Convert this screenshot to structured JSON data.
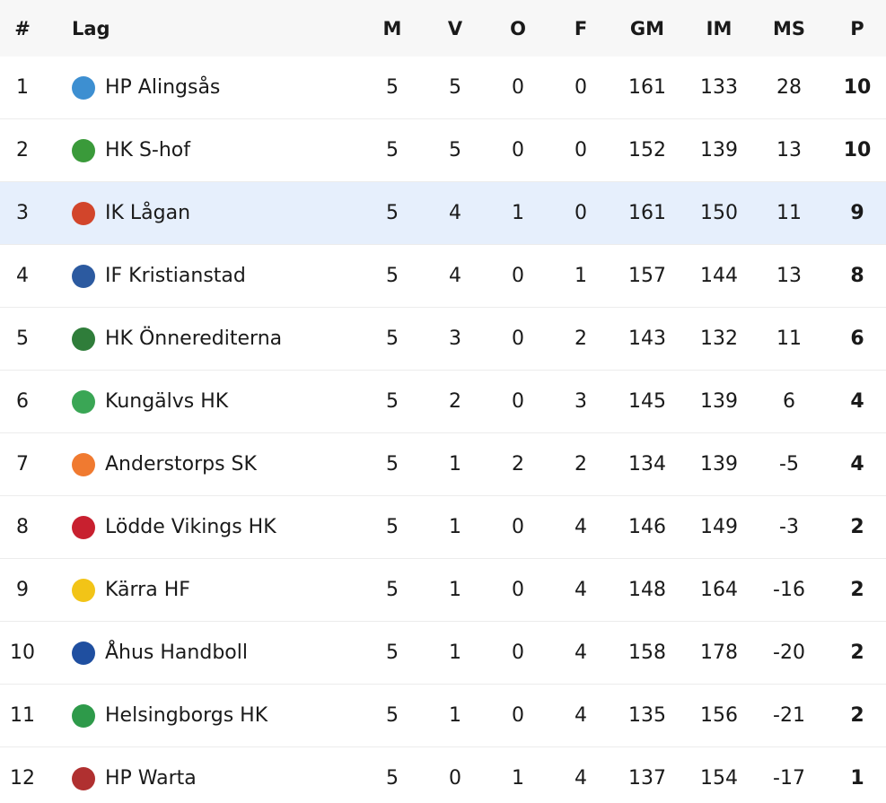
{
  "columns": {
    "rank": "#",
    "team": "Lag",
    "m": "M",
    "v": "V",
    "o": "O",
    "f": "F",
    "gm": "GM",
    "im": "IM",
    "ms": "MS",
    "p": "P"
  },
  "highlight_color": "#e6effc",
  "rows": [
    {
      "rank": "1",
      "team": "HP Alingsås",
      "logo": "hp-alingsas-logo",
      "color": "#3d8fd1",
      "m": "5",
      "v": "5",
      "o": "0",
      "f": "0",
      "gm": "161",
      "im": "133",
      "ms": "28",
      "p": "10"
    },
    {
      "rank": "2",
      "team": "HK S-hof",
      "logo": "hk-s-hof-logo",
      "color": "#3a9a3a",
      "m": "5",
      "v": "5",
      "o": "0",
      "f": "0",
      "gm": "152",
      "im": "139",
      "ms": "13",
      "p": "10"
    },
    {
      "rank": "3",
      "team": "IK Lågan",
      "logo": "ik-lagan-logo",
      "color": "#d2452b",
      "m": "5",
      "v": "4",
      "o": "1",
      "f": "0",
      "gm": "161",
      "im": "150",
      "ms": "11",
      "p": "9",
      "highlighted": true
    },
    {
      "rank": "4",
      "team": "IF Kristianstad",
      "logo": "if-kristianstad-logo",
      "color": "#2c5aa0",
      "m": "5",
      "v": "4",
      "o": "0",
      "f": "1",
      "gm": "157",
      "im": "144",
      "ms": "13",
      "p": "8"
    },
    {
      "rank": "5",
      "team": "HK Önnerediterna",
      "logo": "hk-onnerediterna-logo",
      "color": "#2f7d3a",
      "m": "5",
      "v": "3",
      "o": "0",
      "f": "2",
      "gm": "143",
      "im": "132",
      "ms": "11",
      "p": "6"
    },
    {
      "rank": "6",
      "team": "Kungälvs HK",
      "logo": "kungalvs-hk-logo",
      "color": "#3aa655",
      "m": "5",
      "v": "2",
      "o": "0",
      "f": "3",
      "gm": "145",
      "im": "139",
      "ms": "6",
      "p": "4"
    },
    {
      "rank": "7",
      "team": "Anderstorps SK",
      "logo": "anderstorps-sk-logo",
      "color": "#f07a30",
      "m": "5",
      "v": "1",
      "o": "2",
      "f": "2",
      "gm": "134",
      "im": "139",
      "ms": "-5",
      "p": "4"
    },
    {
      "rank": "8",
      "team": "Lödde Vikings HK",
      "logo": "lodde-vikings-hk-logo",
      "color": "#c8202f",
      "m": "5",
      "v": "1",
      "o": "0",
      "f": "4",
      "gm": "146",
      "im": "149",
      "ms": "-3",
      "p": "2"
    },
    {
      "rank": "9",
      "team": "Kärra HF",
      "logo": "karra-hf-logo",
      "color": "#f2c417",
      "m": "5",
      "v": "1",
      "o": "0",
      "f": "4",
      "gm": "148",
      "im": "164",
      "ms": "-16",
      "p": "2"
    },
    {
      "rank": "10",
      "team": "Åhus Handboll",
      "logo": "ahus-handboll-logo",
      "color": "#1f4fa0",
      "m": "5",
      "v": "1",
      "o": "0",
      "f": "4",
      "gm": "158",
      "im": "178",
      "ms": "-20",
      "p": "2"
    },
    {
      "rank": "11",
      "team": "Helsingborgs HK",
      "logo": "helsingborgs-hk-logo",
      "color": "#2e9a4a",
      "m": "5",
      "v": "1",
      "o": "0",
      "f": "4",
      "gm": "135",
      "im": "156",
      "ms": "-21",
      "p": "2"
    },
    {
      "rank": "12",
      "team": "HP Warta",
      "logo": "hp-warta-logo",
      "color": "#b03030",
      "m": "5",
      "v": "0",
      "o": "1",
      "f": "4",
      "gm": "137",
      "im": "154",
      "ms": "-17",
      "p": "1"
    }
  ]
}
